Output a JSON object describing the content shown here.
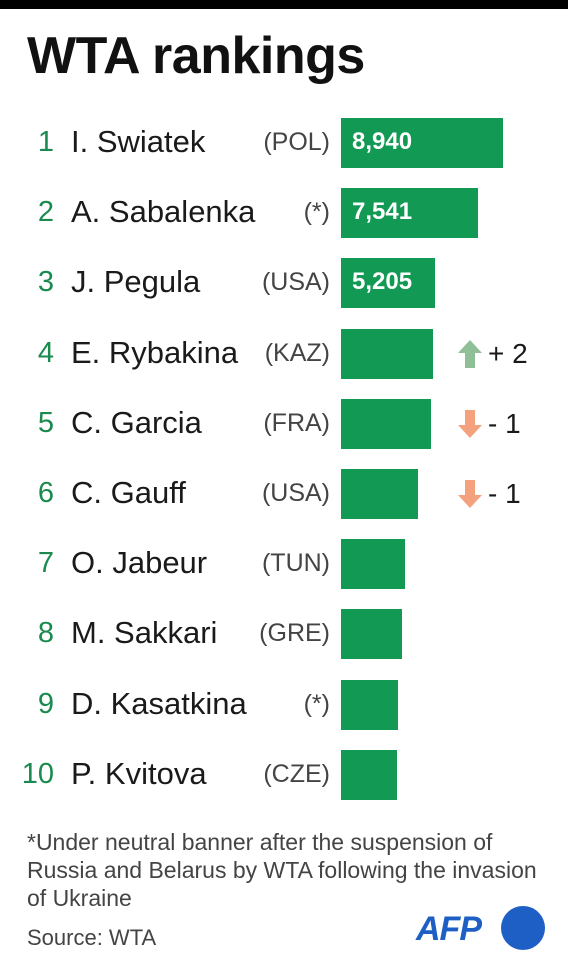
{
  "title": "WTA rankings",
  "colors": {
    "bar": "#129954",
    "rank": "#1a8a4e",
    "up": "#8fbf96",
    "down": "#f3a27d",
    "brand": "#1e5fc6"
  },
  "chart_data": {
    "type": "bar",
    "orientation": "horizontal",
    "title": "WTA rankings",
    "categories": [
      "I. Swiatek",
      "A. Sabalenka",
      "J. Pegula",
      "E. Rybakina",
      "C. Garcia",
      "C. Gauff",
      "O. Jabeur",
      "M. Sakkari",
      "D. Kasatkina",
      "P. Kvitova"
    ],
    "values": [
      8940,
      7541,
      5205,
      5085,
      4990,
      4226,
      3530,
      3356,
      3150,
      3080
    ],
    "xlim": [
      0,
      9000
    ],
    "rows": [
      {
        "rank": "1",
        "name": "I. Swiatek",
        "country": "(POL)",
        "points": 8940,
        "points_label": "8,940",
        "change": null,
        "change_label": ""
      },
      {
        "rank": "2",
        "name": "A. Sabalenka",
        "country": "(*)",
        "points": 7541,
        "points_label": "7,541",
        "change": null,
        "change_label": ""
      },
      {
        "rank": "3",
        "name": "J. Pegula",
        "country": "(USA)",
        "points": 5205,
        "points_label": "5,205",
        "change": null,
        "change_label": ""
      },
      {
        "rank": "4",
        "name": "E. Rybakina",
        "country": "(KAZ)",
        "points": 5085,
        "points_label": "",
        "change": "up",
        "change_label": "+ 2"
      },
      {
        "rank": "5",
        "name": "C. Garcia",
        "country": "(FRA)",
        "points": 4990,
        "points_label": "",
        "change": "down",
        "change_label": "- 1"
      },
      {
        "rank": "6",
        "name": "C. Gauff",
        "country": "(USA)",
        "points": 4226,
        "points_label": "",
        "change": "down",
        "change_label": "- 1"
      },
      {
        "rank": "7",
        "name": "O. Jabeur",
        "country": "(TUN)",
        "points": 3530,
        "points_label": "",
        "change": null,
        "change_label": ""
      },
      {
        "rank": "8",
        "name": "M. Sakkari",
        "country": "(GRE)",
        "points": 3356,
        "points_label": "",
        "change": null,
        "change_label": ""
      },
      {
        "rank": "9",
        "name": "D. Kasatkina",
        "country": "(*)",
        "points": 3150,
        "points_label": "",
        "change": null,
        "change_label": ""
      },
      {
        "rank": "10",
        "name": "P. Kvitova",
        "country": "(CZE)",
        "points": 3080,
        "points_label": "",
        "change": null,
        "change_label": ""
      }
    ]
  },
  "footnote": "*Under neutral banner after the suspension of Russia and Belarus by WTA following the invasion of Ukraine",
  "source": "Source: WTA",
  "logo": "AFP"
}
